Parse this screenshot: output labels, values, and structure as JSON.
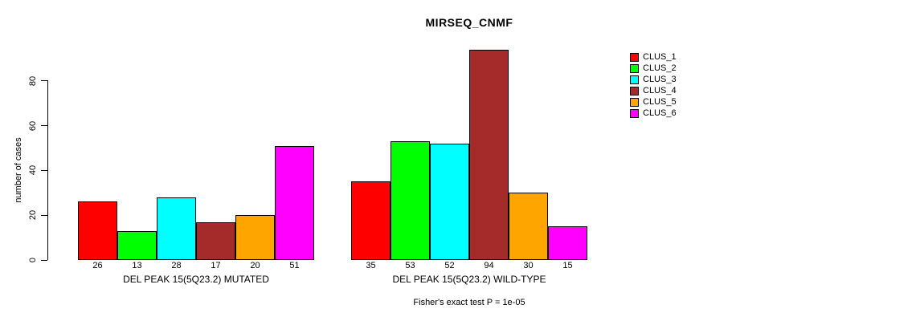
{
  "chart_data": {
    "type": "bar",
    "title": "MIRSEQ_CNMF",
    "ylabel": "number of cases",
    "xlabel": "",
    "yticks": [
      0,
      20,
      40,
      60,
      80
    ],
    "ylim": [
      0,
      94
    ],
    "grid": false,
    "legend_position": "top-right-outside-plot",
    "series_colors": [
      "#FF0000",
      "#00FF00",
      "#00FFFF",
      "#A52A2A",
      "#FFA500",
      "#FF00FF"
    ],
    "legend": [
      {
        "label": "CLUS_1",
        "color": "#FF0000"
      },
      {
        "label": "CLUS_2",
        "color": "#00FF00"
      },
      {
        "label": "CLUS_3",
        "color": "#00FFFF"
      },
      {
        "label": "CLUS_4",
        "color": "#A52A2A"
      },
      {
        "label": "CLUS_5",
        "color": "#FFA500"
      },
      {
        "label": "CLUS_6",
        "color": "#FF00FF"
      }
    ],
    "groups": [
      {
        "label": "DEL PEAK 15(5Q23.2) MUTATED",
        "categories": [
          "CLUS_1",
          "CLUS_2",
          "CLUS_3",
          "CLUS_4",
          "CLUS_5",
          "CLUS_6"
        ],
        "values": [
          26,
          13,
          28,
          17,
          20,
          51
        ]
      },
      {
        "label": "DEL PEAK 15(5Q23.2) WILD-TYPE",
        "categories": [
          "CLUS_1",
          "CLUS_2",
          "CLUS_3",
          "CLUS_4",
          "CLUS_5",
          "CLUS_6"
        ],
        "values": [
          35,
          53,
          52,
          94,
          30,
          15
        ]
      }
    ],
    "footer": "Fisher's exact test P = 1e-05"
  }
}
